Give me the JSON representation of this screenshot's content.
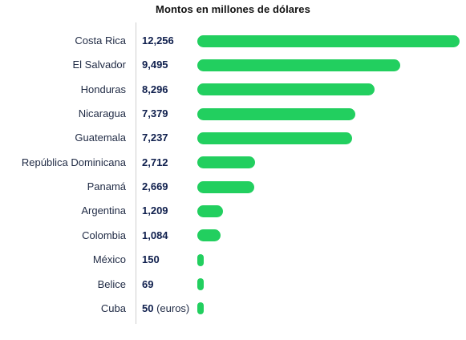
{
  "title": "Montos en millones de dólares",
  "colors": {
    "bar": "#22cf5f",
    "label": "#1f2a44",
    "value": "#0f1f4d"
  },
  "chart_data": {
    "type": "bar",
    "orientation": "horizontal",
    "title": "Montos en millones de dólares",
    "xlabel": "",
    "ylabel": "",
    "grid": false,
    "legend": "none",
    "categories": [
      "Costa Rica",
      "El Salvador",
      "Honduras",
      "Nicaragua",
      "Guatemala",
      "República Dominicana",
      "Panamá",
      "Argentina",
      "Colombia",
      "México",
      "Belice",
      "Cuba"
    ],
    "values": [
      12256,
      9495,
      8296,
      7379,
      7237,
      2712,
      2669,
      1209,
      1084,
      150,
      69,
      50
    ],
    "value_labels": [
      "12,256",
      "9,495",
      "8,296",
      "7,379",
      "7,237",
      "2,712",
      "2,669",
      "1,209",
      "1,084",
      "150",
      "69",
      "50"
    ],
    "value_notes": [
      "",
      "",
      "",
      "",
      "",
      "",
      "",
      "",
      "",
      "",
      "",
      "(euros)"
    ],
    "xlim": [
      0,
      12256
    ]
  }
}
